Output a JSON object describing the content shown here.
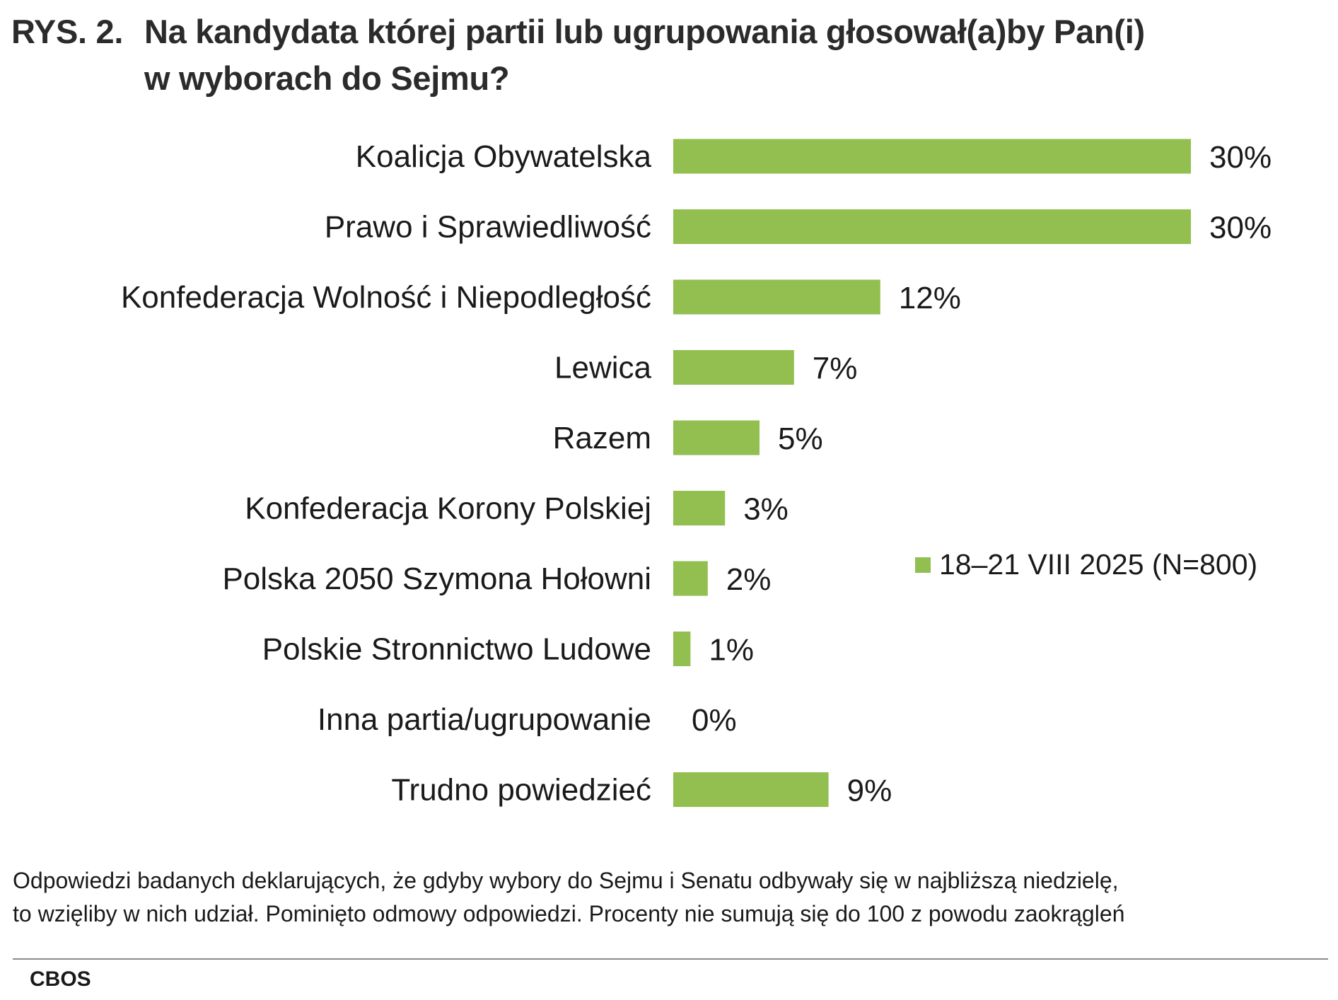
{
  "header": {
    "prefix": "RYS. 2.",
    "title_line1": "Na kandydata której partii lub ugrupowania głosował(a)by Pan(i)",
    "title_line2": "w wyborach do Sejmu?"
  },
  "chart_data": {
    "type": "bar",
    "orientation": "horizontal",
    "title": "Na kandydata której partii lub ugrupowania głosował(a)by Pan(i) w wyborach do Sejmu?",
    "categories": [
      "Koalicja Obywatelska",
      "Prawo i Sprawiedliwość",
      "Konfederacja Wolność i Niepodległość",
      "Lewica",
      "Razem",
      "Konfederacja Korony Polskiej",
      "Polska 2050 Szymona Hołowni",
      "Polskie Stronnictwo Ludowe",
      "Inna partia/ugrupowanie",
      "Trudno powiedzieć"
    ],
    "series": [
      {
        "name": "18–21 VIII 2025 (N=800)",
        "values": [
          30,
          30,
          12,
          7,
          5,
          3,
          2,
          1,
          0,
          9
        ],
        "labels": [
          "30%",
          "30%",
          "12%",
          "7%",
          "5%",
          "3%",
          "2%",
          "1%",
          "0%",
          "9%"
        ],
        "color": "#92bf50"
      }
    ],
    "xlabel": "",
    "ylabel": "",
    "xlim": [
      0,
      30
    ],
    "legend_position": "right",
    "grid": false
  },
  "footnote": {
    "line1": "Odpowiedzi badanych deklarujących, że gdyby wybory do Sejmu i Senatu odbywały się w najbliższą niedzielę,",
    "line2": "to wzięliby w nich udział. Pominięto odmowy odpowiedzi. Procenty nie sumują się do 100 z powodu zaokrągleń"
  },
  "source": "CBOS"
}
